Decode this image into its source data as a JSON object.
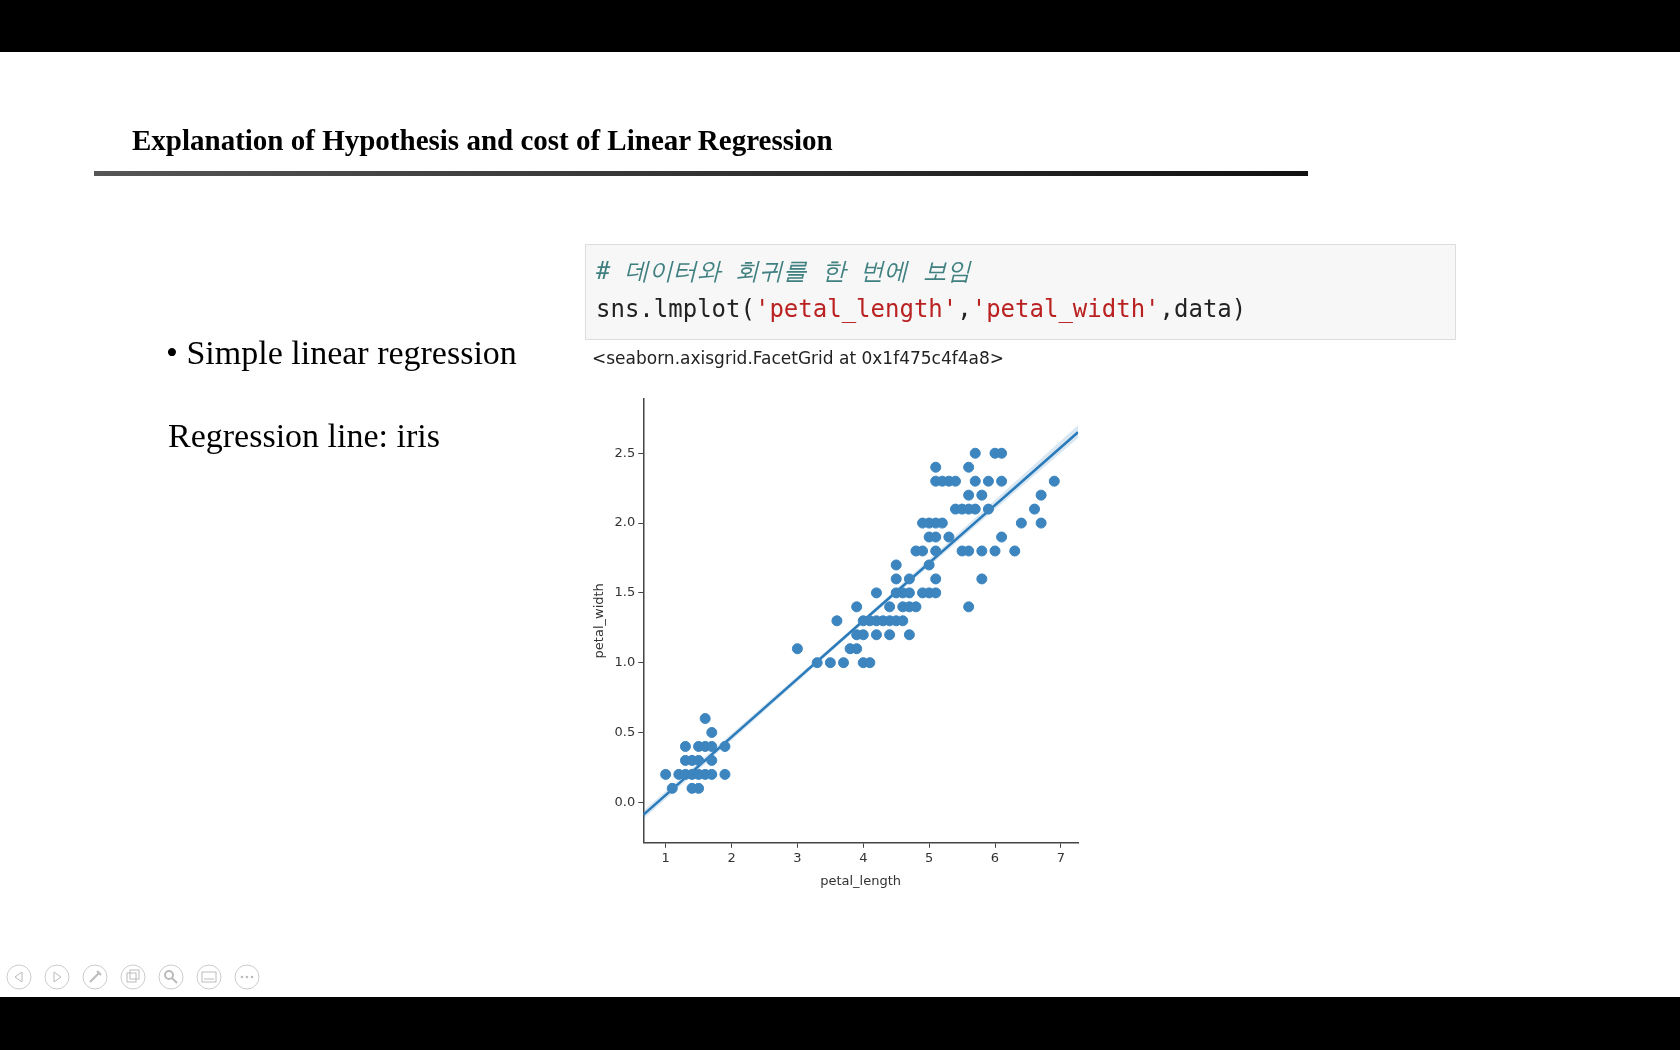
{
  "chart_data": {
    "type": "scatter",
    "title": "Explanation of Hypothesis and cost of Linear Regression",
    "annotations": [
      "• Simple linear regression",
      "Regression line: iris",
      "# 데이터와 회귀를 한 번에 보임",
      "sns.lmplot('petal_length','petal_width',data)",
      "<seaborn.axisgrid.FacetGrid at 0x1f475c4f4a8>"
    ],
    "xlabel": "petal_length",
    "ylabel": "petal_width",
    "xlim": [
      0.66,
      7.26
    ],
    "xticks": [
      1,
      2,
      3,
      4,
      5,
      6,
      7
    ],
    "ylim": [
      -0.29,
      2.89
    ],
    "yticks": [
      {
        "value": 0,
        "label": "0.0"
      },
      {
        "value": 0.5,
        "label": "0.5"
      },
      {
        "value": 1,
        "label": "1.0"
      },
      {
        "value": 1.5,
        "label": "1.5"
      },
      {
        "value": 2,
        "label": "2.0"
      },
      {
        "value": 2.5,
        "label": "2.5"
      }
    ],
    "grid": false,
    "series": [
      {
        "type": "scatter",
        "color": "#3c85bf",
        "marker": "circle",
        "x": [
          1.0,
          1.1,
          1.2,
          1.3,
          1.4,
          1.5,
          1.6,
          1.7,
          1.9,
          1.4,
          1.5,
          1.3,
          1.4,
          1.5,
          1.7,
          1.3,
          1.5,
          1.6,
          1.7,
          1.9,
          1.7,
          1.6,
          3.0,
          3.3,
          3.5,
          3.7,
          4.0,
          4.1,
          3.6,
          3.8,
          3.9,
          3.9,
          4.0,
          4.2,
          4.4,
          4.7,
          3.9,
          4.0,
          4.1,
          4.2,
          4.3,
          4.4,
          4.5,
          4.6,
          4.2,
          4.4,
          4.6,
          4.7,
          4.8,
          4.5,
          4.6,
          4.7,
          4.9,
          5.0,
          5.1,
          4.5,
          4.7,
          5.1,
          4.5,
          5.0,
          4.8,
          4.9,
          5.1,
          5.5,
          5.6,
          5.8,
          6.0,
          6.3,
          5.6,
          5.8,
          5.0,
          5.1,
          5.3,
          6.1,
          4.9,
          5.0,
          5.1,
          5.2,
          6.4,
          6.7,
          5.4,
          5.5,
          5.6,
          5.7,
          5.9,
          6.6,
          5.6,
          5.8,
          6.7,
          5.1,
          5.2,
          5.3,
          5.4,
          5.7,
          5.9,
          6.1,
          6.9,
          5.1,
          5.6,
          5.7,
          6.0,
          6.1
        ],
        "values": [
          0.2,
          0.1,
          0.2,
          0.2,
          0.2,
          0.2,
          0.2,
          0.2,
          0.2,
          0.1,
          0.1,
          0.3,
          0.3,
          0.3,
          0.3,
          0.4,
          0.4,
          0.4,
          0.4,
          0.4,
          0.5,
          0.6,
          1.1,
          1.0,
          1.0,
          1.0,
          1.0,
          1.0,
          1.3,
          1.1,
          1.1,
          1.2,
          1.2,
          1.2,
          1.2,
          1.2,
          1.4,
          1.3,
          1.3,
          1.3,
          1.3,
          1.3,
          1.3,
          1.3,
          1.5,
          1.4,
          1.4,
          1.4,
          1.4,
          1.5,
          1.5,
          1.5,
          1.5,
          1.5,
          1.5,
          1.6,
          1.6,
          1.6,
          1.7,
          1.7,
          1.8,
          1.8,
          1.8,
          1.8,
          1.8,
          1.8,
          1.8,
          1.8,
          1.4,
          1.6,
          1.9,
          1.9,
          1.9,
          1.9,
          2.0,
          2.0,
          2.0,
          2.0,
          2.0,
          2.0,
          2.1,
          2.1,
          2.1,
          2.1,
          2.1,
          2.1,
          2.2,
          2.2,
          2.2,
          2.3,
          2.3,
          2.3,
          2.3,
          2.3,
          2.3,
          2.3,
          2.3,
          2.4,
          2.4,
          2.5,
          2.5,
          2.5
        ]
      },
      {
        "type": "line",
        "color": "#2b7bba",
        "marker": "none",
        "line_style": "solid",
        "x": [
          0.66,
          4,
          7.26
        ],
        "values": [
          -0.09,
          1.3,
          2.65
        ],
        "lower": [
          -0.12,
          1.285,
          2.61
        ],
        "upper": [
          -0.06,
          1.315,
          2.7
        ]
      }
    ]
  }
}
